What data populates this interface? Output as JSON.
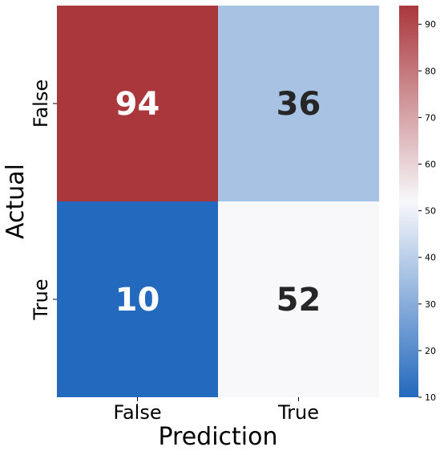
{
  "chart_data": {
    "type": "heatmap",
    "xlabel": "Prediction",
    "ylabel": "Actual",
    "x_categories": [
      "False",
      "True"
    ],
    "y_categories": [
      "False",
      "True"
    ],
    "values": [
      [
        94,
        36
      ],
      [
        10,
        52
      ]
    ],
    "colorbar": {
      "min": 10,
      "max": 94,
      "ticks": [
        10,
        20,
        30,
        40,
        50,
        60,
        70,
        80,
        90
      ],
      "colormap": "vlag",
      "stops": [
        "#2369bd",
        "#f8f8fb",
        "#a9373b"
      ]
    },
    "annotation_colors": {
      "dark": "#262626",
      "light": "#ffffff"
    }
  }
}
